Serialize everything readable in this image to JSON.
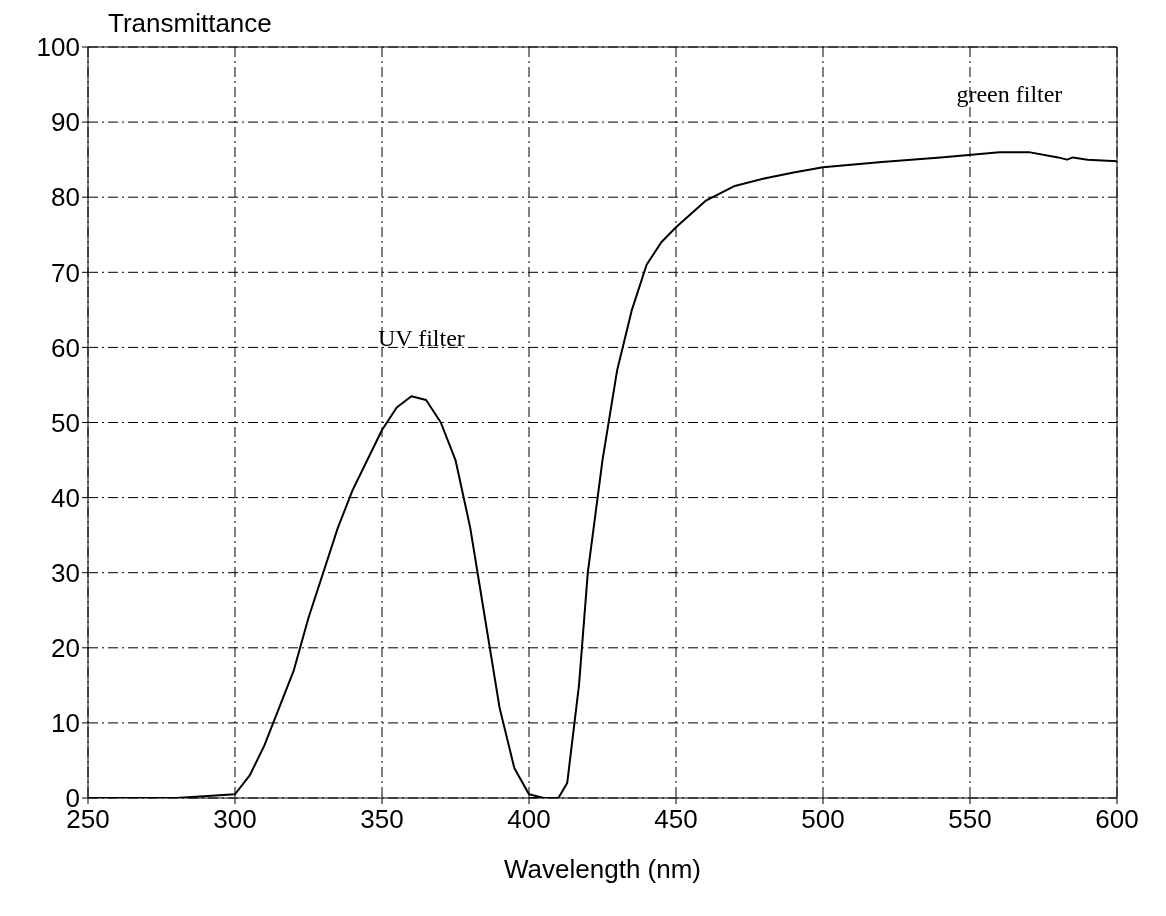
{
  "chart_data": {
    "type": "line",
    "xlabel": "Wavelength (nm)",
    "ylabel": "Transmittance",
    "xlim": [
      250,
      600
    ],
    "xticks": [
      250,
      300,
      350,
      400,
      450,
      500,
      550,
      600
    ],
    "ylim": [
      0,
      100
    ],
    "yticks": [
      0,
      10,
      20,
      30,
      40,
      50,
      60,
      70,
      80,
      90,
      100
    ],
    "grid": true,
    "marker": "none",
    "line_style": "solid",
    "series": [
      {
        "name": "UV filter",
        "color": "#000000",
        "x": [
          250,
          280,
          300,
          305,
          310,
          315,
          320,
          325,
          330,
          335,
          340,
          345,
          350,
          355,
          360,
          365,
          370,
          375,
          380,
          385,
          390,
          395,
          400,
          405
        ],
        "values": [
          0,
          0,
          0.5,
          3,
          7,
          12,
          17,
          24,
          30,
          36,
          41,
          45,
          49,
          52,
          53.5,
          53,
          50,
          45,
          36,
          24,
          12,
          4,
          0.5,
          0
        ]
      },
      {
        "name": "green filter",
        "color": "#000000",
        "x": [
          400,
          410,
          413,
          417,
          420,
          425,
          430,
          435,
          440,
          445,
          450,
          460,
          470,
          480,
          490,
          500,
          520,
          540,
          560,
          570,
          580,
          583,
          585,
          590,
          600
        ],
        "values": [
          0,
          0,
          2,
          15,
          30,
          45,
          57,
          65,
          71,
          74,
          76,
          79.5,
          81.5,
          82.5,
          83.3,
          84,
          84.7,
          85.3,
          86,
          86,
          85.3,
          85,
          85.3,
          85,
          84.8
        ]
      }
    ]
  }
}
